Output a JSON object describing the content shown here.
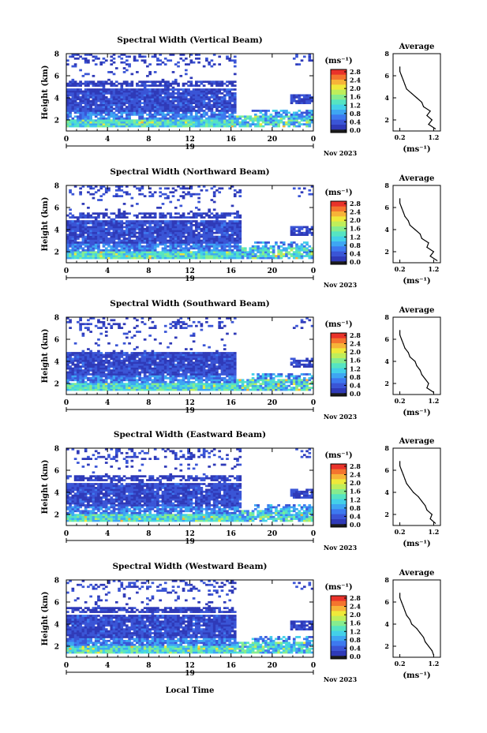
{
  "colors": {
    "colorbar": [
      "#1c1c1c",
      "#2f3ab8",
      "#3a55d6",
      "#3d79ef",
      "#3ea6f2",
      "#43d0e8",
      "#56e4c2",
      "#86ec8e",
      "#bfee5a",
      "#efe93a",
      "#f7b338",
      "#f4742e",
      "#e9322a"
    ],
    "profile_line": "#000000",
    "axis": "#000000"
  },
  "x_axis_label": "Local Time",
  "chart_data": [
    {
      "type": "heatmap",
      "title": "Spectral Width (Vertical Beam)",
      "ylabel": "Height (km)",
      "xlim": [
        0,
        24
      ],
      "ylim": [
        1,
        8
      ],
      "x_ticks": [
        "0",
        "4",
        "8",
        "12",
        "16",
        "20",
        "0"
      ],
      "y_ticks": [
        "2",
        "4",
        "6",
        "8"
      ],
      "date_label": "19",
      "month_label": "Nov 2023",
      "colorbar_unit": "(ms⁻¹)",
      "colorbar_ticks": [
        "0.0",
        "0.4",
        "0.8",
        "1.2",
        "1.6",
        "2.0",
        "2.4",
        "2.8"
      ],
      "profile": {
        "title": "Average",
        "xlabel": "(ms⁻¹)",
        "x_ticks": [
          "0.2",
          "1.2"
        ],
        "y_ticks": [
          "2",
          "4",
          "6",
          "8"
        ],
        "xlim": [
          0,
          1.4
        ],
        "ylim": [
          1,
          8
        ],
        "heights": [
          1.2,
          1.6,
          2.0,
          2.4,
          2.8,
          3.2,
          3.6,
          4.0,
          4.4,
          4.8,
          5.2,
          5.6,
          6.0,
          6.4,
          6.8
        ],
        "values": [
          1.25,
          1.05,
          1.15,
          1.0,
          1.1,
          0.9,
          0.85,
          0.7,
          0.55,
          0.4,
          0.35,
          0.3,
          0.25,
          0.2,
          0.2
        ]
      }
    },
    {
      "type": "heatmap",
      "title": "Spectral Width (Northward Beam)",
      "ylabel": "Height (km)",
      "xlim": [
        0,
        24
      ],
      "ylim": [
        1,
        8
      ],
      "x_ticks": [
        "0",
        "4",
        "8",
        "12",
        "16",
        "20",
        "0"
      ],
      "y_ticks": [
        "2",
        "4",
        "6",
        "8"
      ],
      "date_label": "19",
      "month_label": "Nov 2023",
      "colorbar_unit": "(ms⁻¹)",
      "colorbar_ticks": [
        "0.0",
        "0.4",
        "0.8",
        "1.2",
        "1.6",
        "2.0",
        "2.4",
        "2.8"
      ],
      "profile": {
        "title": "Average",
        "xlabel": "(ms⁻¹)",
        "x_ticks": [
          "0.2",
          "1.2"
        ],
        "y_ticks": [
          "2",
          "4",
          "6",
          "8"
        ],
        "xlim": [
          0,
          1.4
        ],
        "ylim": [
          1,
          8
        ],
        "heights": [
          1.2,
          1.6,
          2.0,
          2.4,
          2.8,
          3.2,
          3.6,
          4.0,
          4.4,
          4.8,
          5.2,
          5.6,
          6.0,
          6.4,
          6.8
        ],
        "values": [
          1.3,
          1.1,
          1.2,
          1.0,
          1.05,
          0.85,
          0.8,
          0.65,
          0.5,
          0.45,
          0.35,
          0.3,
          0.25,
          0.2,
          0.2
        ]
      }
    },
    {
      "type": "heatmap",
      "title": "Spectral Width (Southward Beam)",
      "ylabel": "Height (km)",
      "xlim": [
        0,
        24
      ],
      "ylim": [
        1,
        8
      ],
      "x_ticks": [
        "0",
        "4",
        "8",
        "12",
        "16",
        "20",
        "0"
      ],
      "y_ticks": [
        "2",
        "4",
        "6",
        "8"
      ],
      "date_label": "19",
      "month_label": "Nov 2023",
      "colorbar_unit": "(ms⁻¹)",
      "colorbar_ticks": [
        "0.0",
        "0.4",
        "0.8",
        "1.2",
        "1.6",
        "2.0",
        "2.4",
        "2.8"
      ],
      "profile": {
        "title": "Average",
        "xlabel": "(ms⁻¹)",
        "x_ticks": [
          "0.2",
          "1.2"
        ],
        "y_ticks": [
          "2",
          "4",
          "6",
          "8"
        ],
        "xlim": [
          0,
          1.4
        ],
        "ylim": [
          1,
          8
        ],
        "heights": [
          1.2,
          1.6,
          2.0,
          2.4,
          2.8,
          3.2,
          3.6,
          4.0,
          4.4,
          4.8,
          5.2,
          5.6,
          6.0,
          6.4,
          6.8
        ],
        "values": [
          1.2,
          1.0,
          1.05,
          0.95,
          0.85,
          0.8,
          0.7,
          0.65,
          0.5,
          0.45,
          0.35,
          0.3,
          0.25,
          0.2,
          0.2
        ]
      }
    },
    {
      "type": "heatmap",
      "title": "Spectral Width (Eastward Beam)",
      "ylabel": "Height (km)",
      "xlim": [
        0,
        24
      ],
      "ylim": [
        1,
        8
      ],
      "x_ticks": [
        "0",
        "4",
        "8",
        "12",
        "16",
        "20",
        "0"
      ],
      "y_ticks": [
        "2",
        "4",
        "6",
        "8"
      ],
      "date_label": "19",
      "month_label": "Nov 2023",
      "colorbar_unit": "(ms⁻¹)",
      "colorbar_ticks": [
        "0.0",
        "0.4",
        "0.8",
        "1.2",
        "1.6",
        "2.0",
        "2.4",
        "2.8"
      ],
      "profile": {
        "title": "Average",
        "xlabel": "(ms⁻¹)",
        "x_ticks": [
          "0.2",
          "1.2"
        ],
        "y_ticks": [
          "2",
          "4",
          "6",
          "8"
        ],
        "xlim": [
          0,
          1.4
        ],
        "ylim": [
          1,
          8
        ],
        "heights": [
          1.2,
          1.6,
          2.0,
          2.4,
          2.8,
          3.2,
          3.6,
          4.0,
          4.4,
          4.8,
          5.2,
          5.6,
          6.0,
          6.4,
          6.8
        ],
        "values": [
          1.25,
          1.1,
          1.15,
          1.0,
          0.95,
          0.85,
          0.75,
          0.6,
          0.5,
          0.4,
          0.35,
          0.3,
          0.25,
          0.2,
          0.2
        ]
      }
    },
    {
      "type": "heatmap",
      "title": "Spectral Width (Westward Beam)",
      "ylabel": "Height (km)",
      "xlim": [
        0,
        24
      ],
      "ylim": [
        1,
        8
      ],
      "x_ticks": [
        "0",
        "4",
        "8",
        "12",
        "16",
        "20",
        "0"
      ],
      "y_ticks": [
        "2",
        "4",
        "6",
        "8"
      ],
      "date_label": "19",
      "month_label": "Nov 2023",
      "colorbar_unit": "(ms⁻¹)",
      "colorbar_ticks": [
        "0.0",
        "0.4",
        "0.8",
        "1.2",
        "1.6",
        "2.0",
        "2.4",
        "2.8"
      ],
      "profile": {
        "title": "Average",
        "xlabel": "(ms⁻¹)",
        "x_ticks": [
          "0.2",
          "1.2"
        ],
        "y_ticks": [
          "2",
          "4",
          "6",
          "8"
        ],
        "xlim": [
          0,
          1.4
        ],
        "ylim": [
          1,
          8
        ],
        "heights": [
          1.2,
          1.6,
          2.0,
          2.4,
          2.8,
          3.2,
          3.6,
          4.0,
          4.4,
          4.8,
          5.2,
          5.6,
          6.0,
          6.4,
          6.8
        ],
        "values": [
          1.2,
          1.15,
          1.05,
          0.95,
          0.9,
          0.8,
          0.7,
          0.55,
          0.5,
          0.4,
          0.35,
          0.3,
          0.25,
          0.2,
          0.2
        ]
      }
    }
  ]
}
